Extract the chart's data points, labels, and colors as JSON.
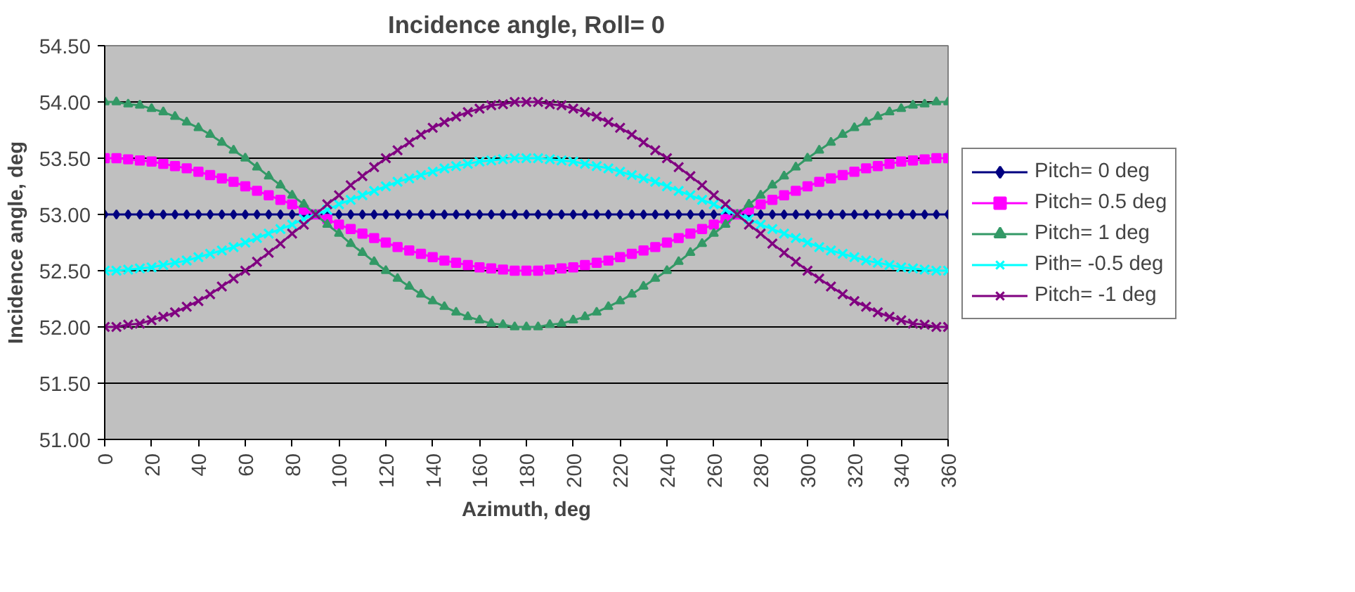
{
  "chart_data": {
    "type": "line",
    "title": "Incidence angle, Roll= 0",
    "xlabel": "Azimuth, deg",
    "ylabel": "Incidence angle, deg",
    "x": [
      0,
      5,
      10,
      15,
      20,
      25,
      30,
      35,
      40,
      45,
      50,
      55,
      60,
      65,
      70,
      75,
      80,
      85,
      90,
      95,
      100,
      105,
      110,
      115,
      120,
      125,
      130,
      135,
      140,
      145,
      150,
      155,
      160,
      165,
      170,
      175,
      180,
      185,
      190,
      195,
      200,
      205,
      210,
      215,
      220,
      225,
      230,
      235,
      240,
      245,
      250,
      255,
      260,
      265,
      270,
      275,
      280,
      285,
      290,
      295,
      300,
      305,
      310,
      315,
      320,
      325,
      330,
      335,
      340,
      345,
      350,
      355,
      360
    ],
    "xlim": [
      0,
      360
    ],
    "xticks": [
      0,
      20,
      40,
      60,
      80,
      100,
      120,
      140,
      160,
      180,
      200,
      220,
      240,
      260,
      280,
      300,
      320,
      340,
      360
    ],
    "ylim": [
      51,
      54.5
    ],
    "yticks": [
      {
        "value": 51,
        "label": "51.00"
      },
      {
        "value": 51.5,
        "label": "51.50"
      },
      {
        "value": 52,
        "label": "52.00"
      },
      {
        "value": 52.5,
        "label": "52.50"
      },
      {
        "value": 53,
        "label": "53.00"
      },
      {
        "value": 53.5,
        "label": "53.50"
      },
      {
        "value": 54,
        "label": "54.00"
      },
      {
        "value": 54.5,
        "label": "54.50"
      }
    ],
    "grid": "y",
    "legend": "right",
    "series": [
      {
        "name": "Pitch= 0 deg",
        "color": "#000080",
        "marker": "diamond",
        "values": [
          53,
          53,
          53,
          53,
          53,
          53,
          53,
          53,
          53,
          53,
          53,
          53,
          53,
          53,
          53,
          53,
          53,
          53,
          53,
          53,
          53,
          53,
          53,
          53,
          53,
          53,
          53,
          53,
          53,
          53,
          53,
          53,
          53,
          53,
          53,
          53,
          53,
          53,
          53,
          53,
          53,
          53,
          53,
          53,
          53,
          53,
          53,
          53,
          53,
          53,
          53,
          53,
          53,
          53,
          53,
          53,
          53,
          53,
          53,
          53,
          53,
          53,
          53,
          53,
          53,
          53,
          53,
          53,
          53,
          53,
          53,
          53,
          53
        ]
      },
      {
        "name": "Pitch= 0.5 deg",
        "color": "#ff00ff",
        "marker": "square",
        "values": [
          53.5,
          53.5,
          53.49,
          53.48,
          53.47,
          53.45,
          53.43,
          53.41,
          53.38,
          53.35,
          53.32,
          53.29,
          53.25,
          53.21,
          53.17,
          53.13,
          53.09,
          53.04,
          53.0,
          52.96,
          52.91,
          52.87,
          52.83,
          52.79,
          52.75,
          52.71,
          52.68,
          52.65,
          52.62,
          52.59,
          52.57,
          52.55,
          52.53,
          52.52,
          52.51,
          52.5,
          52.5,
          52.5,
          52.51,
          52.52,
          52.53,
          52.55,
          52.57,
          52.59,
          52.62,
          52.65,
          52.68,
          52.71,
          52.75,
          52.79,
          52.83,
          52.87,
          52.91,
          52.96,
          53.0,
          53.04,
          53.09,
          53.13,
          53.17,
          53.21,
          53.25,
          53.29,
          53.32,
          53.35,
          53.38,
          53.41,
          53.43,
          53.45,
          53.47,
          53.48,
          53.49,
          53.5,
          53.5
        ]
      },
      {
        "name": "Pitch= 1 deg",
        "color": "#339966",
        "marker": "triangle",
        "values": [
          54.0,
          54.0,
          53.98,
          53.97,
          53.94,
          53.91,
          53.87,
          53.82,
          53.77,
          53.71,
          53.64,
          53.57,
          53.5,
          53.42,
          53.34,
          53.26,
          53.17,
          53.09,
          53.0,
          52.91,
          52.83,
          52.74,
          52.66,
          52.58,
          52.5,
          52.43,
          52.36,
          52.29,
          52.23,
          52.18,
          52.13,
          52.09,
          52.06,
          52.03,
          52.02,
          52.0,
          52.0,
          52.0,
          52.02,
          52.03,
          52.06,
          52.09,
          52.13,
          52.18,
          52.23,
          52.29,
          52.36,
          52.43,
          52.5,
          52.58,
          52.66,
          52.74,
          52.83,
          52.91,
          53.0,
          53.09,
          53.17,
          53.26,
          53.34,
          53.42,
          53.5,
          53.57,
          53.64,
          53.71,
          53.77,
          53.82,
          53.87,
          53.91,
          53.94,
          53.97,
          53.98,
          54.0,
          54.0
        ]
      },
      {
        "name": "Pith= -0.5 deg",
        "color": "#00ffff",
        "marker": "cross",
        "values": [
          52.5,
          52.5,
          52.51,
          52.52,
          52.53,
          52.55,
          52.57,
          52.59,
          52.62,
          52.65,
          52.68,
          52.71,
          52.75,
          52.79,
          52.83,
          52.87,
          52.91,
          52.96,
          53.0,
          53.04,
          53.09,
          53.13,
          53.17,
          53.21,
          53.25,
          53.29,
          53.32,
          53.35,
          53.38,
          53.41,
          53.43,
          53.45,
          53.47,
          53.48,
          53.49,
          53.5,
          53.5,
          53.5,
          53.49,
          53.48,
          53.47,
          53.45,
          53.43,
          53.41,
          53.38,
          53.35,
          53.32,
          53.29,
          53.25,
          53.21,
          53.17,
          53.13,
          53.09,
          53.04,
          53.0,
          52.96,
          52.91,
          52.87,
          52.83,
          52.79,
          52.75,
          52.71,
          52.68,
          52.65,
          52.62,
          52.59,
          52.57,
          52.55,
          52.53,
          52.52,
          52.51,
          52.5,
          52.5
        ]
      },
      {
        "name": "Pitch= -1 deg",
        "color": "#800080",
        "marker": "cross",
        "values": [
          52.0,
          52.0,
          52.02,
          52.03,
          52.06,
          52.09,
          52.13,
          52.18,
          52.23,
          52.29,
          52.36,
          52.43,
          52.5,
          52.58,
          52.66,
          52.74,
          52.83,
          52.91,
          53.0,
          53.09,
          53.17,
          53.26,
          53.34,
          53.42,
          53.5,
          53.57,
          53.64,
          53.71,
          53.77,
          53.82,
          53.87,
          53.91,
          53.94,
          53.97,
          53.98,
          54.0,
          54.0,
          54.0,
          53.98,
          53.97,
          53.94,
          53.91,
          53.87,
          53.82,
          53.77,
          53.71,
          53.64,
          53.57,
          53.5,
          53.42,
          53.34,
          53.26,
          53.17,
          53.09,
          53.0,
          52.91,
          52.83,
          52.74,
          52.66,
          52.58,
          52.5,
          52.43,
          52.36,
          52.29,
          52.23,
          52.18,
          52.13,
          52.09,
          52.06,
          52.03,
          52.02,
          52.0,
          52.0
        ]
      }
    ]
  }
}
